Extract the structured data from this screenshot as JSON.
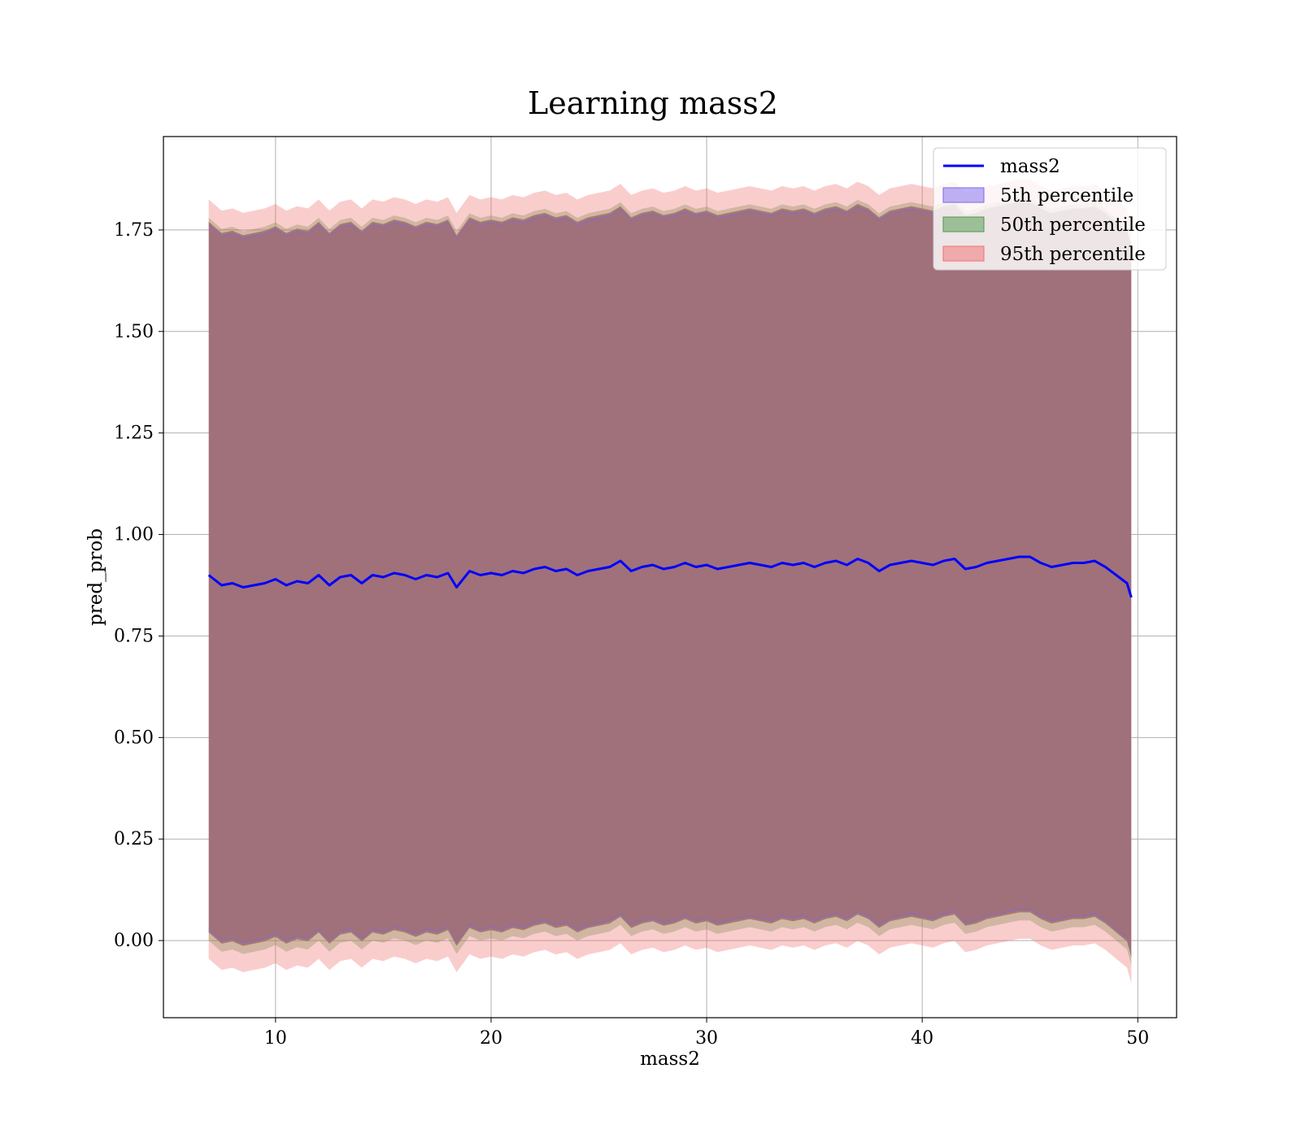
{
  "chart_data": {
    "type": "area",
    "title": "Learning mass2",
    "xlabel": "mass2",
    "ylabel": "pred_prob",
    "xlim": [
      4.8,
      51.8
    ],
    "ylim": [
      -0.19,
      1.98
    ],
    "xticks": [
      10,
      20,
      30,
      40,
      50
    ],
    "yticks": [
      0.0,
      0.25,
      0.5,
      0.75,
      1.0,
      1.25,
      1.5,
      1.75
    ],
    "ytick_labels": [
      "0.00",
      "0.25",
      "0.50",
      "0.75",
      "1.00",
      "1.25",
      "1.50",
      "1.75"
    ],
    "grid": true,
    "legend_position": "top-right",
    "x": [
      6.9,
      7.5,
      8.0,
      8.5,
      9.0,
      9.5,
      10.0,
      10.5,
      11.0,
      11.5,
      12.0,
      12.5,
      13.0,
      13.5,
      14.0,
      14.5,
      15.0,
      15.5,
      16.0,
      16.5,
      17.0,
      17.5,
      18.0,
      18.4,
      19.0,
      19.5,
      20.0,
      20.5,
      21.0,
      21.5,
      22.0,
      22.5,
      23.0,
      23.5,
      24.0,
      24.5,
      25.0,
      25.5,
      26.0,
      26.5,
      27.0,
      27.5,
      28.0,
      28.5,
      29.0,
      29.5,
      30.0,
      30.5,
      31.0,
      31.5,
      32.0,
      32.5,
      33.0,
      33.5,
      34.0,
      34.5,
      35.0,
      35.5,
      36.0,
      36.5,
      37.0,
      37.5,
      38.0,
      38.5,
      39.0,
      39.5,
      40.0,
      40.5,
      41.0,
      41.5,
      42.0,
      42.5,
      43.0,
      43.5,
      44.0,
      44.5,
      45.0,
      45.5,
      46.0,
      46.5,
      47.0,
      47.5,
      48.0,
      48.5,
      49.0,
      49.5,
      49.7
    ],
    "series": [
      {
        "name": "mass2",
        "values": [
          0.9,
          0.875,
          0.88,
          0.87,
          0.875,
          0.88,
          0.89,
          0.875,
          0.885,
          0.88,
          0.9,
          0.875,
          0.895,
          0.9,
          0.88,
          0.9,
          0.895,
          0.905,
          0.9,
          0.89,
          0.9,
          0.895,
          0.905,
          0.87,
          0.91,
          0.9,
          0.905,
          0.9,
          0.91,
          0.905,
          0.915,
          0.92,
          0.91,
          0.915,
          0.9,
          0.91,
          0.915,
          0.92,
          0.935,
          0.91,
          0.92,
          0.925,
          0.915,
          0.92,
          0.93,
          0.92,
          0.925,
          0.915,
          0.92,
          0.925,
          0.93,
          0.925,
          0.92,
          0.93,
          0.925,
          0.93,
          0.92,
          0.93,
          0.935,
          0.925,
          0.94,
          0.93,
          0.91,
          0.925,
          0.93,
          0.935,
          0.93,
          0.925,
          0.935,
          0.94,
          0.915,
          0.92,
          0.93,
          0.935,
          0.94,
          0.945,
          0.945,
          0.93,
          0.92,
          0.925,
          0.93,
          0.93,
          0.935,
          0.92,
          0.9,
          0.88,
          0.845
        ]
      }
    ],
    "bands": [
      {
        "name": "5th percentile",
        "color": "#7b68ee",
        "lower_offset": 0.03,
        "upper_offset": -0.04
      },
      {
        "name": "50th percentile",
        "color": "#4a9a4a",
        "lower_offset": 0.0,
        "upper_offset": -0.02
      },
      {
        "name": "95th percentile",
        "color": "#f07070",
        "lower_offset": -0.045,
        "upper_offset": 0.025
      }
    ],
    "band_base": {
      "lower": 0.0,
      "upper": 1.8
    },
    "colors": {
      "line": "#0000ff",
      "band_fill": "#a0717a",
      "band_upper_edge": "#f4a0a0",
      "band_orange": "#c8906a"
    }
  }
}
